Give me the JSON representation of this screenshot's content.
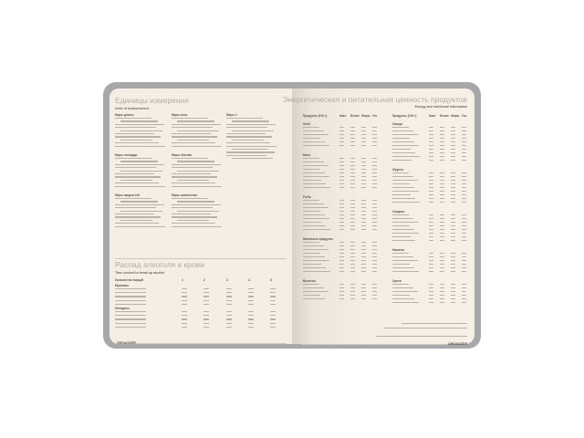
{
  "left_page": {
    "units_title": "Единицы измерения",
    "units_subtitle": "Units of measurement",
    "units_sections": [
      "Меры длины",
      "Меры площади",
      "Меры жидкостей",
      "Меры веса",
      "Меры объема",
      "Меры количества",
      "Меры 2"
    ],
    "alcohol_title": "Распад алкоголя в крови",
    "alcohol_subtitle": "Time needed to break up alcohol",
    "alcohol_table": {
      "header_label": "Количество порций",
      "columns": [
        "1",
        "2",
        "3",
        "4",
        "5"
      ],
      "groups": [
        "Мужчины",
        "Женщины"
      ]
    },
    "footer": "ORGANIZER"
  },
  "right_page": {
    "title": "Энергетическая и питательная ценность продуктов",
    "subtitle": "Energy and nutritional information",
    "table_headers": [
      "Продукты (100 г)",
      "Ккал",
      "Белки",
      "Жиры",
      "Угл."
    ],
    "left_categories": [
      "Хлеб",
      "Мясо",
      "Рыба",
      "Молочные продукты",
      "Выпечка"
    ],
    "right_categories": [
      "Овощи",
      "Фрукты",
      "Сладкое",
      "Напитки",
      "Орехи"
    ],
    "footer": "ORGANIZER"
  }
}
